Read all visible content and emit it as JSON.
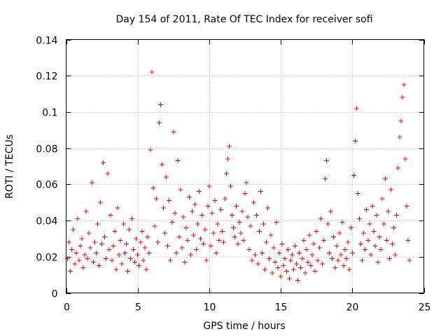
{
  "chart_data": {
    "type": "scatter",
    "title": "Day 154 of 2011, Rate Of TEC Index for receiver sofi",
    "xlabel": "GPS time / hours",
    "ylabel": "ROTI / TECUs",
    "xlim": [
      0,
      25
    ],
    "ylim": [
      0,
      0.14
    ],
    "xticks": [
      0,
      5,
      10,
      15,
      20,
      25
    ],
    "xtick_labels": [
      "0",
      "5",
      "10",
      "15",
      "20",
      "25"
    ],
    "yticks": [
      0,
      0.02,
      0.04,
      0.06,
      0.08,
      0.1,
      0.12,
      0.14
    ],
    "ytick_labels": [
      "0",
      "0.02",
      "0.04",
      "0.06",
      "0.08",
      "0.1",
      "0.12",
      "0.14"
    ],
    "grid": true,
    "marker": "+",
    "color": "#ff0000",
    "series": [
      {
        "name": "ROTI",
        "points": [
          [
            0.1,
            0.019
          ],
          [
            0.2,
            0.028
          ],
          [
            0.3,
            0.012
          ],
          [
            0.4,
            0.024
          ],
          [
            0.5,
            0.035
          ],
          [
            0.6,
            0.016
          ],
          [
            0.7,
            0.022
          ],
          [
            0.8,
            0.041
          ],
          [
            0.9,
            0.018
          ],
          [
            1.0,
            0.026
          ],
          [
            1.1,
            0.03
          ],
          [
            1.2,
            0.014
          ],
          [
            1.3,
            0.021
          ],
          [
            1.4,
            0.045
          ],
          [
            1.5,
            0.019
          ],
          [
            1.6,
            0.033
          ],
          [
            1.7,
            0.025
          ],
          [
            1.8,
            0.061
          ],
          [
            1.9,
            0.017
          ],
          [
            2.0,
            0.028
          ],
          [
            2.1,
            0.022
          ],
          [
            2.2,
            0.038
          ],
          [
            2.3,
            0.015
          ],
          [
            2.4,
            0.05
          ],
          [
            2.5,
            0.027
          ],
          [
            2.6,
            0.072
          ],
          [
            2.7,
            0.031
          ],
          [
            2.8,
            0.019
          ],
          [
            2.9,
            0.066
          ],
          [
            3.0,
            0.024
          ],
          [
            3.1,
            0.043
          ],
          [
            3.2,
            0.018
          ],
          [
            3.3,
            0.026
          ],
          [
            3.4,
            0.034
          ],
          [
            3.5,
            0.013
          ],
          [
            3.6,
            0.047
          ],
          [
            3.7,
            0.021
          ],
          [
            3.8,
            0.029
          ],
          [
            3.9,
            0.016
          ],
          [
            4.0,
            0.038
          ],
          [
            4.1,
            0.022
          ],
          [
            4.2,
            0.027
          ],
          [
            4.3,
            0.012
          ],
          [
            4.4,
            0.035
          ],
          [
            4.5,
            0.019
          ],
          [
            4.6,
            0.041
          ],
          [
            4.7,
            0.024
          ],
          [
            4.8,
            0.017
          ],
          [
            4.9,
            0.03
          ],
          [
            5.0,
            0.021
          ],
          [
            5.1,
            0.015
          ],
          [
            5.2,
            0.028
          ],
          [
            5.3,
            0.034
          ],
          [
            5.4,
            0.018
          ],
          [
            5.5,
            0.025
          ],
          [
            5.6,
            0.013
          ],
          [
            5.7,
            0.031
          ],
          [
            5.8,
            0.022
          ],
          [
            5.9,
            0.079
          ],
          [
            6.0,
            0.122
          ],
          [
            6.1,
            0.058
          ],
          [
            6.2,
            0.037
          ],
          [
            6.3,
            0.052
          ],
          [
            6.4,
            0.028
          ],
          [
            6.5,
            0.094
          ],
          [
            6.6,
            0.104
          ],
          [
            6.7,
            0.071
          ],
          [
            6.8,
            0.047
          ],
          [
            6.9,
            0.033
          ],
          [
            7.0,
            0.064
          ],
          [
            7.1,
            0.026
          ],
          [
            7.2,
            0.051
          ],
          [
            7.3,
            0.018
          ],
          [
            7.4,
            0.039
          ],
          [
            7.5,
            0.089
          ],
          [
            7.6,
            0.044
          ],
          [
            7.7,
            0.022
          ],
          [
            7.8,
            0.073
          ],
          [
            7.9,
            0.031
          ],
          [
            8.0,
            0.057
          ],
          [
            8.1,
            0.025
          ],
          [
            8.2,
            0.042
          ],
          [
            8.3,
            0.017
          ],
          [
            8.4,
            0.036
          ],
          [
            8.5,
            0.029
          ],
          [
            8.6,
            0.053
          ],
          [
            8.7,
            0.021
          ],
          [
            8.8,
            0.045
          ],
          [
            8.9,
            0.032
          ],
          [
            9.0,
            0.049
          ],
          [
            9.1,
            0.024
          ],
          [
            9.2,
            0.038
          ],
          [
            9.3,
            0.056
          ],
          [
            9.4,
            0.03
          ],
          [
            9.5,
            0.043
          ],
          [
            9.6,
            0.027
          ],
          [
            9.7,
            0.035
          ],
          [
            9.8,
            0.018
          ],
          [
            9.9,
            0.048
          ],
          [
            10.0,
            0.059
          ],
          [
            10.1,
            0.026
          ],
          [
            10.2,
            0.044
          ],
          [
            10.3,
            0.033
          ],
          [
            10.4,
            0.051
          ],
          [
            10.5,
            0.022
          ],
          [
            10.6,
            0.038
          ],
          [
            10.7,
            0.029
          ],
          [
            10.8,
            0.046
          ],
          [
            10.9,
            0.034
          ],
          [
            11.0,
            0.028
          ],
          [
            11.1,
            0.052
          ],
          [
            11.2,
            0.066
          ],
          [
            11.3,
            0.074
          ],
          [
            11.4,
            0.081
          ],
          [
            11.5,
            0.059
          ],
          [
            11.6,
            0.043
          ],
          [
            11.7,
            0.036
          ],
          [
            11.8,
            0.031
          ],
          [
            11.9,
            0.048
          ],
          [
            12.0,
            0.027
          ],
          [
            12.1,
            0.039
          ],
          [
            12.2,
            0.033
          ],
          [
            12.3,
            0.045
          ],
          [
            12.4,
            0.029
          ],
          [
            12.5,
            0.055
          ],
          [
            12.6,
            0.061
          ],
          [
            12.7,
            0.042
          ],
          [
            12.8,
            0.024
          ],
          [
            12.9,
            0.037
          ],
          [
            13.0,
            0.018
          ],
          [
            13.1,
            0.05
          ],
          [
            13.2,
            0.021
          ],
          [
            13.3,
            0.043
          ],
          [
            13.4,
            0.016
          ],
          [
            13.5,
            0.034
          ],
          [
            13.6,
            0.056
          ],
          [
            13.7,
            0.022
          ],
          [
            13.8,
            0.038
          ],
          [
            13.9,
            0.013
          ],
          [
            14.0,
            0.028
          ],
          [
            14.1,
            0.047
          ],
          [
            14.2,
            0.019
          ],
          [
            14.3,
            0.032
          ],
          [
            14.4,
            0.011
          ],
          [
            14.5,
            0.025
          ],
          [
            14.6,
            0.017
          ],
          [
            14.7,
            0.039
          ],
          [
            14.8,
            0.014
          ],
          [
            14.9,
            0.022
          ],
          [
            15.0,
            0.009
          ],
          [
            15.1,
            0.027
          ],
          [
            15.2,
            0.015
          ],
          [
            15.3,
            0.019
          ],
          [
            15.4,
            0.012
          ],
          [
            15.5,
            0.024
          ],
          [
            15.6,
            0.008
          ],
          [
            15.7,
            0.018
          ],
          [
            15.8,
            0.021
          ],
          [
            15.9,
            0.013
          ],
          [
            16.0,
            0.026
          ],
          [
            16.1,
            0.016
          ],
          [
            16.2,
            0.007
          ],
          [
            16.3,
            0.022
          ],
          [
            16.4,
            0.014
          ],
          [
            16.5,
            0.019
          ],
          [
            16.6,
            0.029
          ],
          [
            16.7,
            0.011
          ],
          [
            16.8,
            0.024
          ],
          [
            16.9,
            0.017
          ],
          [
            17.0,
            0.032
          ],
          [
            17.1,
            0.015
          ],
          [
            17.2,
            0.021
          ],
          [
            17.3,
            0.027
          ],
          [
            17.4,
            0.012
          ],
          [
            17.5,
            0.034
          ],
          [
            17.6,
            0.018
          ],
          [
            17.7,
            0.025
          ],
          [
            17.8,
            0.041
          ],
          [
            17.9,
            0.016
          ],
          [
            18.0,
            0.029
          ],
          [
            18.1,
            0.063
          ],
          [
            18.2,
            0.073
          ],
          [
            18.3,
            0.038
          ],
          [
            18.4,
            0.022
          ],
          [
            18.5,
            0.045
          ],
          [
            18.6,
            0.019
          ],
          [
            18.7,
            0.031
          ],
          [
            18.8,
            0.014
          ],
          [
            18.9,
            0.026
          ],
          [
            19.0,
            0.018
          ],
          [
            19.1,
            0.033
          ],
          [
            19.2,
            0.021
          ],
          [
            19.3,
            0.039
          ],
          [
            19.4,
            0.015
          ],
          [
            19.5,
            0.024
          ],
          [
            19.6,
            0.019
          ],
          [
            19.7,
            0.028
          ],
          [
            19.8,
            0.013
          ],
          [
            19.9,
            0.036
          ],
          [
            20.0,
            0.022
          ],
          [
            20.1,
            0.065
          ],
          [
            20.2,
            0.084
          ],
          [
            20.3,
            0.102
          ],
          [
            20.4,
            0.055
          ],
          [
            20.5,
            0.041
          ],
          [
            20.6,
            0.027
          ],
          [
            20.7,
            0.018
          ],
          [
            20.8,
            0.033
          ],
          [
            20.9,
            0.024
          ],
          [
            21.0,
            0.046
          ],
          [
            21.1,
            0.029
          ],
          [
            21.2,
            0.038
          ],
          [
            21.3,
            0.021
          ],
          [
            21.4,
            0.048
          ],
          [
            21.5,
            0.034
          ],
          [
            21.6,
            0.026
          ],
          [
            21.7,
            0.043
          ],
          [
            21.8,
            0.017
          ],
          [
            21.9,
            0.031
          ],
          [
            22.0,
            0.024
          ],
          [
            22.1,
            0.052
          ],
          [
            22.2,
            0.038
          ],
          [
            22.3,
            0.063
          ],
          [
            22.4,
            0.029
          ],
          [
            22.5,
            0.045
          ],
          [
            22.6,
            0.019
          ],
          [
            22.7,
            0.057
          ],
          [
            22.8,
            0.027
          ],
          [
            22.9,
            0.036
          ],
          [
            23.0,
            0.021
          ],
          [
            23.1,
            0.043
          ],
          [
            23.2,
            0.069
          ],
          [
            23.3,
            0.086
          ],
          [
            23.4,
            0.095
          ],
          [
            23.5,
            0.108
          ],
          [
            23.6,
            0.115
          ],
          [
            23.7,
            0.074
          ],
          [
            23.8,
            0.048
          ],
          [
            23.9,
            0.029
          ],
          [
            24.0,
            0.018
          ]
        ]
      }
    ]
  }
}
